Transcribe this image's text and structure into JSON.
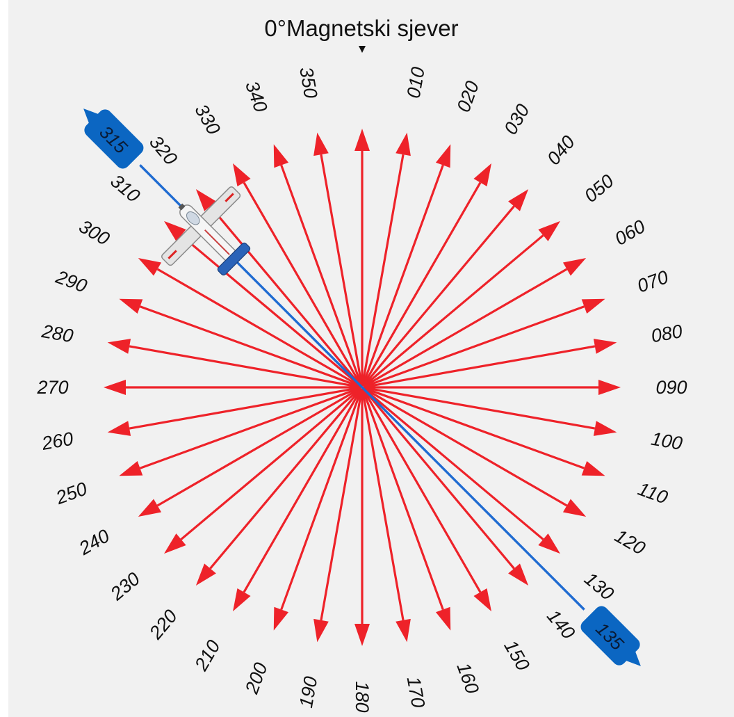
{
  "title": {
    "degree_text": "0°",
    "north_text": "Magnetski sjever"
  },
  "rose": {
    "headings": [
      "010",
      "020",
      "030",
      "040",
      "050",
      "060",
      "070",
      "080",
      "090",
      "100",
      "110",
      "120",
      "130",
      "140",
      "150",
      "160",
      "170",
      "180",
      "190",
      "200",
      "210",
      "220",
      "230",
      "240",
      "250",
      "260",
      "270",
      "280",
      "290",
      "300",
      "310",
      "320",
      "330",
      "340",
      "350"
    ],
    "runway_tags": [
      "315",
      "135"
    ],
    "heading_degrees": [
      10,
      20,
      30,
      40,
      50,
      60,
      70,
      80,
      90,
      100,
      110,
      120,
      130,
      140,
      150,
      160,
      170,
      180,
      190,
      200,
      210,
      220,
      230,
      240,
      250,
      260,
      270,
      280,
      290,
      300,
      310,
      320,
      330,
      340,
      350
    ],
    "course_line_degrees": 315
  },
  "colors": {
    "arrow_red": "#ee2229",
    "course_blue": "#1f6bd1",
    "tag_blue": "#0b66c2",
    "background": "#f1f1f1"
  },
  "icons": {
    "aircraft": "airplane-icon",
    "north_marker": "triangle-down-icon"
  }
}
